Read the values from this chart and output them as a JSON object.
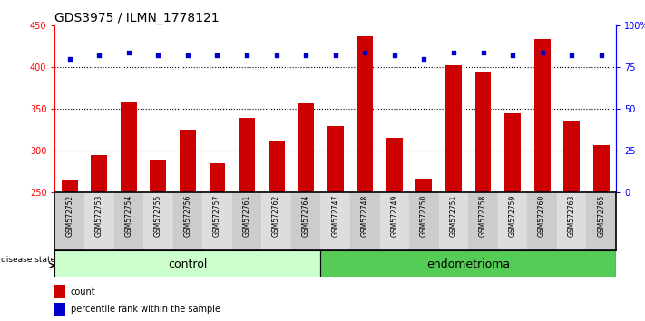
{
  "title": "GDS3975 / ILMN_1778121",
  "samples": [
    "GSM572752",
    "GSM572753",
    "GSM572754",
    "GSM572755",
    "GSM572756",
    "GSM572757",
    "GSM572761",
    "GSM572762",
    "GSM572764",
    "GSM572747",
    "GSM572748",
    "GSM572749",
    "GSM572750",
    "GSM572751",
    "GSM572758",
    "GSM572759",
    "GSM572760",
    "GSM572763",
    "GSM572765"
  ],
  "bar_values": [
    265,
    295,
    358,
    288,
    325,
    285,
    340,
    312,
    357,
    330,
    437,
    316,
    267,
    402,
    395,
    345,
    434,
    336,
    307
  ],
  "percentile_values": [
    80,
    82,
    84,
    82,
    82,
    82,
    82,
    82,
    82,
    82,
    84,
    82,
    80,
    84,
    84,
    82,
    84,
    82,
    82
  ],
  "group_labels": [
    "control",
    "endometrioma"
  ],
  "control_count": 9,
  "endometrioma_count": 10,
  "ylim_left": [
    250,
    450
  ],
  "ylim_right": [
    0,
    100
  ],
  "yticks_left": [
    250,
    300,
    350,
    400,
    450
  ],
  "yticks_right": [
    0,
    25,
    50,
    75,
    100
  ],
  "bar_color": "#cc0000",
  "dot_color": "#0000cc",
  "bg_color_control": "#ccffcc",
  "bg_color_endometrioma": "#55cc55",
  "label_bg_odd": "#cccccc",
  "label_bg_even": "#dddddd",
  "disease_label": "disease state",
  "legend_count_label": "count",
  "legend_pct_label": "percentile rank within the sample",
  "title_fontsize": 10,
  "tick_fontsize": 7,
  "label_fontsize": 9,
  "sample_fontsize": 5.5
}
